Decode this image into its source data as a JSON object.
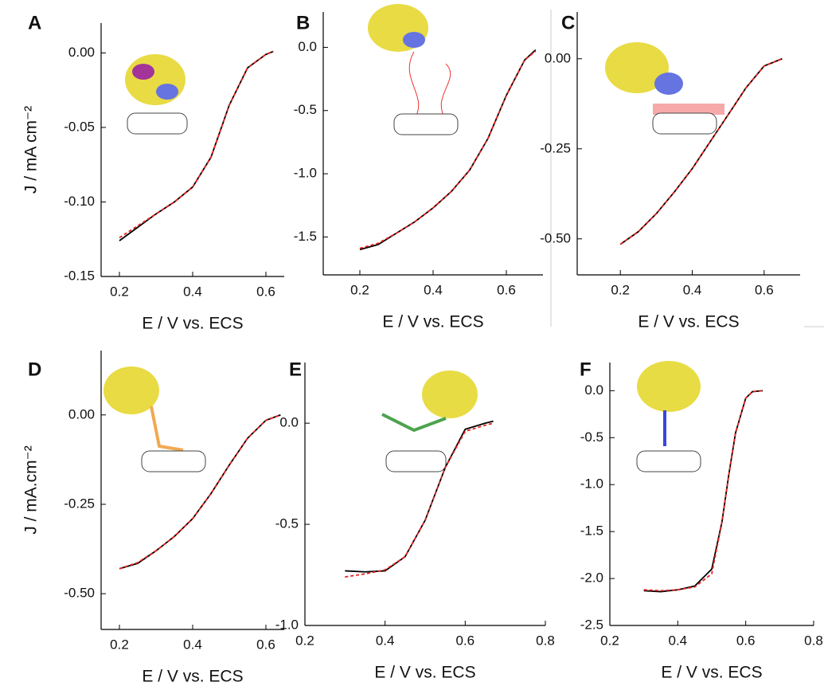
{
  "chart_data": [
    {
      "type": "line",
      "panel": "A",
      "y_label": "J / mA cm⁻²",
      "x_label": "E / V vs. ECS",
      "x": [
        0.2,
        0.25,
        0.3,
        0.35,
        0.4,
        0.45,
        0.5,
        0.55,
        0.6,
        0.62
      ],
      "series": [
        {
          "color": "#000000",
          "dashed": false,
          "values": [
            -0.126,
            -0.117,
            -0.108,
            -0.1,
            -0.09,
            -0.07,
            -0.035,
            -0.01,
            -0.001,
            0.001
          ]
        },
        {
          "color": "#e8201c",
          "dashed": true,
          "values": [
            -0.124,
            -0.116,
            -0.108,
            -0.1,
            -0.09,
            -0.07,
            -0.035,
            -0.01,
            -0.001,
            0.001
          ]
        }
      ],
      "xlim": [
        0.15,
        0.65
      ],
      "xticks": [
        0.2,
        0.4,
        0.6
      ],
      "ylim": [
        -0.15,
        0.02
      ],
      "yticks": [
        {
          "value": 0,
          "label": "0.00"
        },
        {
          "value": -0.05,
          "label": "-0.05"
        },
        {
          "value": -0.1,
          "label": "-0.10"
        },
        {
          "value": -0.15,
          "label": "-0.15"
        }
      ]
    },
    {
      "type": "line",
      "panel": "B",
      "x_label": "E / V vs. ECS",
      "x": [
        0.2,
        0.25,
        0.3,
        0.35,
        0.4,
        0.45,
        0.5,
        0.55,
        0.6,
        0.65,
        0.68
      ],
      "series": [
        {
          "color": "#000000",
          "dashed": false,
          "values": [
            -1.6,
            -1.56,
            -1.47,
            -1.38,
            -1.27,
            -1.14,
            -0.97,
            -0.72,
            -0.38,
            -0.1,
            -0.02
          ]
        },
        {
          "color": "#e8201c",
          "dashed": true,
          "values": [
            -1.59,
            -1.55,
            -1.47,
            -1.38,
            -1.27,
            -1.14,
            -0.97,
            -0.72,
            -0.38,
            -0.1,
            -0.03
          ]
        }
      ],
      "xlim": [
        0.1,
        0.7
      ],
      "xticks": [
        0.2,
        0.4,
        0.6
      ],
      "ylim": [
        -1.8,
        0.28
      ],
      "yticks": [
        {
          "value": 0,
          "label": "0.0"
        },
        -0.5,
        {
          "value": -1,
          "label": "-1.0"
        },
        -1.5
      ]
    },
    {
      "type": "line",
      "panel": "C",
      "x_label": "E / V vs. ECS",
      "x": [
        0.2,
        0.25,
        0.3,
        0.35,
        0.4,
        0.45,
        0.5,
        0.55,
        0.6,
        0.65
      ],
      "series": [
        {
          "color": "#000000",
          "dashed": false,
          "values": [
            -0.515,
            -0.48,
            -0.43,
            -0.37,
            -0.305,
            -0.23,
            -0.155,
            -0.08,
            -0.02,
            0.0
          ]
        },
        {
          "color": "#e8201c",
          "dashed": true,
          "values": [
            -0.515,
            -0.48,
            -0.43,
            -0.37,
            -0.305,
            -0.23,
            -0.155,
            -0.08,
            -0.02,
            0.0
          ]
        }
      ],
      "xlim": [
        0.08,
        0.7
      ],
      "xticks": [
        0.2,
        0.4,
        0.6
      ],
      "ylim": [
        -0.6,
        0.13
      ],
      "yticks": [
        {
          "value": 0,
          "label": "0.00"
        },
        -0.25,
        {
          "value": -0.5,
          "label": "-0.50"
        }
      ]
    },
    {
      "type": "line",
      "panel": "D",
      "y_label": "J / mA.cm⁻²",
      "x_label": "E / V vs. ECS",
      "x": [
        0.2,
        0.25,
        0.3,
        0.35,
        0.4,
        0.45,
        0.5,
        0.55,
        0.6,
        0.64
      ],
      "series": [
        {
          "color": "#000000",
          "dashed": false,
          "values": [
            -0.43,
            -0.415,
            -0.38,
            -0.34,
            -0.29,
            -0.22,
            -0.14,
            -0.065,
            -0.015,
            0.0
          ]
        },
        {
          "color": "#e8201c",
          "dashed": true,
          "values": [
            -0.43,
            -0.413,
            -0.38,
            -0.34,
            -0.29,
            -0.22,
            -0.14,
            -0.065,
            -0.015,
            0.0
          ]
        }
      ],
      "xlim": [
        0.15,
        0.65
      ],
      "xticks": [
        0.2,
        0.4,
        0.6
      ],
      "ylim": [
        -0.6,
        0.18
      ],
      "yticks": [
        {
          "value": 0,
          "label": "0.00"
        },
        -0.25,
        {
          "value": -0.5,
          "label": "-0.50"
        }
      ]
    },
    {
      "type": "line",
      "panel": "E",
      "x_label": "E / V vs. ECS",
      "x": [
        0.3,
        0.35,
        0.4,
        0.45,
        0.5,
        0.55,
        0.6,
        0.65,
        0.67
      ],
      "series": [
        {
          "color": "#000000",
          "dashed": false,
          "values": [
            -0.73,
            -0.735,
            -0.73,
            -0.66,
            -0.48,
            -0.22,
            -0.03,
            0.0,
            0.01
          ]
        },
        {
          "color": "#e8201c",
          "dashed": true,
          "values": [
            -0.76,
            -0.745,
            -0.725,
            -0.66,
            -0.48,
            -0.22,
            -0.04,
            -0.01,
            0.0
          ]
        }
      ],
      "xlim": [
        0.2,
        0.8
      ],
      "xticks": [
        {
          "value": 0.2,
          "label": "0.2"
        },
        0.4,
        0.6,
        0.8
      ],
      "ylim": [
        -1.0,
        0.3
      ],
      "yticks": [
        {
          "value": 0,
          "label": "0.0"
        },
        -0.5,
        {
          "value": -1,
          "label": "-1.0"
        }
      ]
    },
    {
      "type": "line",
      "panel": "F",
      "x_label": "E / V vs. ECS",
      "x": [
        0.3,
        0.35,
        0.4,
        0.45,
        0.5,
        0.53,
        0.55,
        0.57,
        0.6,
        0.62,
        0.65
      ],
      "series": [
        {
          "color": "#000000",
          "dashed": false,
          "values": [
            -2.13,
            -2.14,
            -2.12,
            -2.08,
            -1.9,
            -1.4,
            -0.9,
            -0.45,
            -0.08,
            -0.01,
            0.0
          ]
        },
        {
          "color": "#e8201c",
          "dashed": true,
          "values": [
            -2.12,
            -2.13,
            -2.12,
            -2.09,
            -1.95,
            -1.4,
            -0.9,
            -0.45,
            -0.08,
            -0.01,
            0.0
          ]
        }
      ],
      "xlim": [
        0.2,
        0.8
      ],
      "xticks": [
        0.2,
        0.4,
        0.6,
        0.8
      ],
      "ylim": [
        -2.5,
        0.3
      ],
      "yticks": [
        {
          "value": 0,
          "label": "0.0"
        },
        -0.5,
        {
          "value": -1,
          "label": "-1.0"
        },
        -1.5,
        {
          "value": -2,
          "label": "-2.0"
        },
        -2.5
      ]
    }
  ]
}
